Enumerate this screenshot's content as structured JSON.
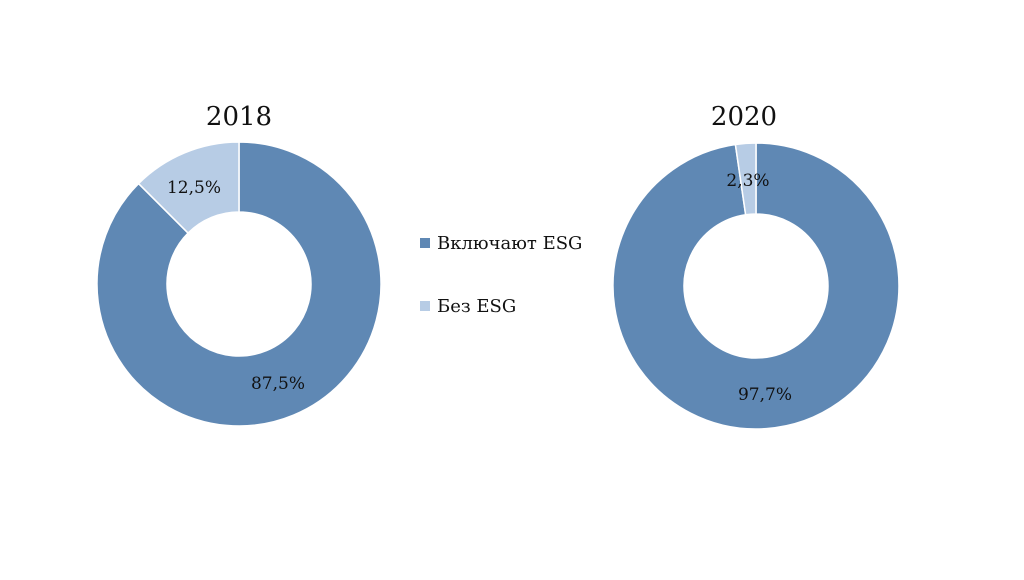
{
  "colors": {
    "series_1": "#5f88b4",
    "series_2": "#b7cce5",
    "slice_border": "#ffffff",
    "background": "#ffffff"
  },
  "legend": {
    "position": "center",
    "items": [
      {
        "label": "Включают ESG",
        "color_key": "series_1"
      },
      {
        "label": "Без ESG",
        "color_key": "series_2"
      }
    ]
  },
  "chart_data": [
    {
      "type": "pie",
      "variant": "donut",
      "title": "2018",
      "categories": [
        "Включают ESG",
        "Без ESG"
      ],
      "values": [
        87.5,
        12.5
      ],
      "data_labels": [
        "87,5%",
        "12,5%"
      ]
    },
    {
      "type": "pie",
      "variant": "donut",
      "title": "2020",
      "categories": [
        "Включают ESG",
        "Без ESG"
      ],
      "values": [
        97.7,
        2.3
      ],
      "data_labels": [
        "97,7%",
        "2,3%"
      ]
    }
  ]
}
